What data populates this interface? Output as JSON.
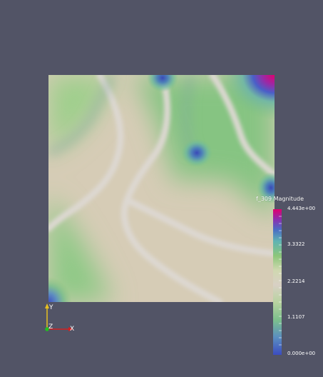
{
  "scene": {
    "background_color": "#525466",
    "array_name": "f_309 Magnitude"
  },
  "colorbar": {
    "title": "f_309 Magnitude",
    "labels": [
      "4.443e+00",
      "3.3322",
      "2.2214",
      "1.1107",
      "0.000e+00"
    ],
    "range": [
      0.0,
      4.443
    ],
    "colormap": [
      "#3b4cc0",
      "#5fb3b3",
      "#8cc67a",
      "#cfd3a3",
      "#d8d0c4",
      "#5f8f8f",
      "#8c2fb0",
      "#e0006e"
    ]
  },
  "axes": {
    "x_label": "X",
    "y_label": "Y",
    "z_label": "Z",
    "x_color": "#d22020",
    "y_color": "#e8c020",
    "z_color": "#20c020"
  }
}
